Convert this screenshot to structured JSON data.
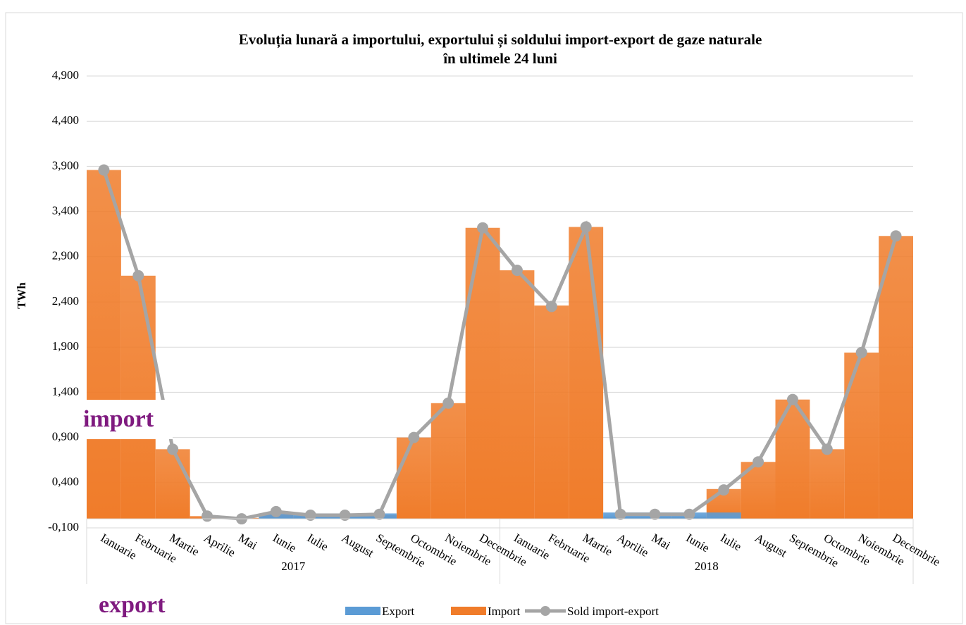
{
  "chart_data": {
    "type": "bar",
    "title": [
      "Evoluția lunară a importului, exportului și soldului import-export de gaze naturale",
      "în ultimele 24 luni"
    ],
    "y_label": "TWh",
    "categories": [
      "Ianuarie",
      "Februarie",
      "Martie",
      "Aprilie",
      "Mai",
      "Iunie",
      "Iulie",
      "August",
      "Septembrie",
      "Octombrie",
      "Noiembrie",
      "Decembrie",
      "Ianuarie",
      "Februarie",
      "Martie",
      "Aprilie",
      "Mai",
      "Iunie",
      "Iulie",
      "August",
      "Septembrie",
      "Octombrie",
      "Noiembrie",
      "Decembrie"
    ],
    "groups": [
      "2017",
      "2018"
    ],
    "series": [
      {
        "name": "Export",
        "type": "bar",
        "color": "#5b9bd5",
        "values": [
          0,
          0,
          0,
          0,
          0,
          0.06,
          0.06,
          0.06,
          0.06,
          0,
          0,
          0,
          0,
          0,
          0,
          0.07,
          0.07,
          0.07,
          0.07,
          0,
          0,
          0,
          0,
          0
        ]
      },
      {
        "name": "Import",
        "type": "bar",
        "color": "#f07c2a",
        "values": [
          3.86,
          2.69,
          0.77,
          0.03,
          0.01,
          0.05,
          0.03,
          0.03,
          0.04,
          0.9,
          1.28,
          3.22,
          2.75,
          2.36,
          3.23,
          0.02,
          0.02,
          0.02,
          0.33,
          0.63,
          1.32,
          0.77,
          1.84,
          3.13
        ]
      },
      {
        "name": "Sold import-export",
        "type": "line",
        "color": "#a5a5a5",
        "values": [
          3.86,
          2.69,
          0.77,
          0.03,
          0.0,
          0.08,
          0.04,
          0.04,
          0.05,
          0.9,
          1.28,
          3.22,
          2.75,
          2.35,
          3.23,
          0.05,
          0.05,
          0.05,
          0.32,
          0.63,
          1.32,
          0.77,
          1.84,
          3.13
        ]
      }
    ],
    "ylim": [
      -0.1,
      4.9
    ],
    "yticks": [
      {
        "value": -0.1,
        "label": "-0,100"
      },
      {
        "value": 0.4,
        "label": "0,400"
      },
      {
        "value": 0.9,
        "label": "0,900"
      },
      {
        "value": 1.4,
        "label": "1,400"
      },
      {
        "value": 1.9,
        "label": "1,900"
      },
      {
        "value": 2.4,
        "label": "2,400"
      },
      {
        "value": 2.9,
        "label": "2,900"
      },
      {
        "value": 3.4,
        "label": "3,400"
      },
      {
        "value": 3.9,
        "label": "3,900"
      },
      {
        "value": 4.4,
        "label": "4,400"
      },
      {
        "value": 4.9,
        "label": "4,900"
      }
    ],
    "grid": true,
    "legend": "bottom",
    "annotations": [
      "import",
      "export"
    ]
  }
}
